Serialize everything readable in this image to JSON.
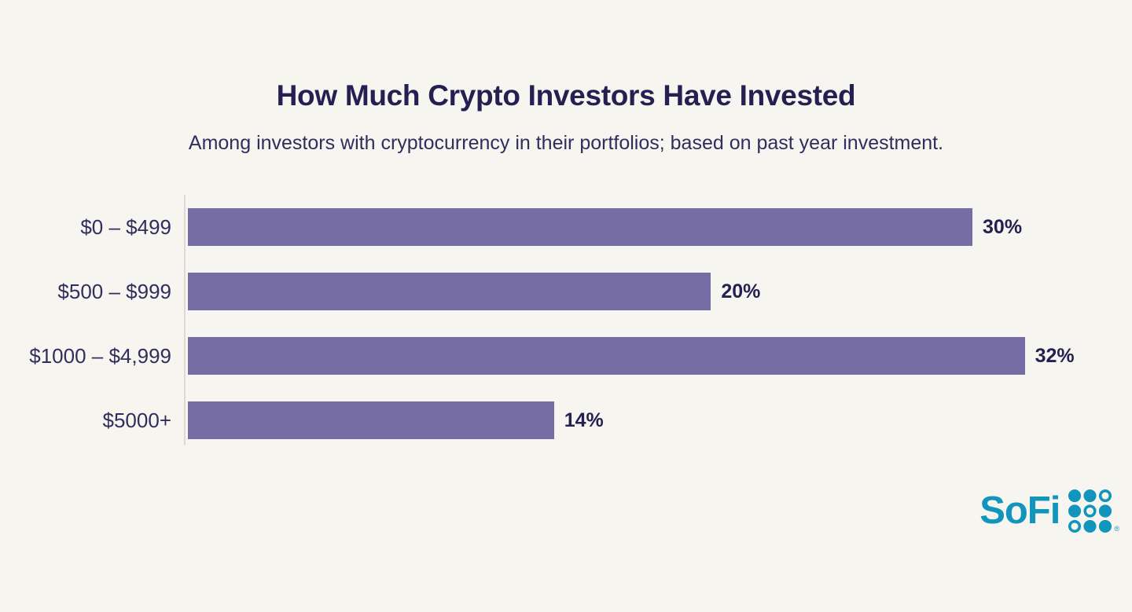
{
  "page": {
    "background": "#F7F5F0",
    "text_color": "#262052",
    "secondary_text_color": "#332C5C"
  },
  "header": {
    "title": "How Much Crypto Investors Have Invested",
    "subtitle": "Among investors with cryptocurrency in their portfolios; based on past year investment."
  },
  "chart_data": {
    "type": "bar",
    "orientation": "horizontal",
    "title": "How Much Crypto Investors Have Invested",
    "subtitle": "Among investors with cryptocurrency in their portfolios; based on past year investment.",
    "categories": [
      "$0 – $499",
      "$500 – $999",
      "$1000 – $4,999",
      "$5000+"
    ],
    "values": [
      30,
      20,
      32,
      14
    ],
    "value_labels": [
      "30%",
      "20%",
      "32%",
      "14%"
    ],
    "unit": "%",
    "xlabel": "",
    "ylabel": "",
    "xlim": [
      0,
      35.5
    ],
    "grid": false,
    "legend": false,
    "bar_color": "#766DA6",
    "axis_line_color": "#DDDAD3"
  },
  "branding": {
    "logo_text": "SoFi",
    "logo_color": "#1295BC",
    "registered_mark": "®"
  }
}
